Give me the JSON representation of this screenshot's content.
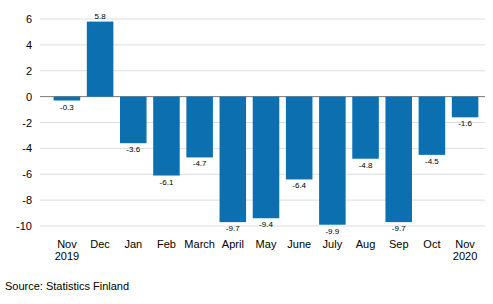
{
  "chart_data": {
    "type": "bar",
    "categories": [
      "Nov 2019",
      "Dec",
      "Jan",
      "Feb",
      "March",
      "April",
      "May",
      "June",
      "July",
      "Aug",
      "Sep",
      "Oct",
      "Nov 2020"
    ],
    "values": [
      -0.3,
      5.8,
      -3.6,
      -6.1,
      -4.7,
      -9.7,
      -9.4,
      -6.4,
      -9.9,
      -4.8,
      -9.7,
      -4.5,
      -1.6
    ],
    "color": "#0b6fb0",
    "ylim": [
      -10,
      6
    ],
    "yticks": [
      -10,
      -8,
      -6,
      -4,
      -2,
      0,
      2,
      4,
      6
    ],
    "grid": true,
    "data_labels": true,
    "source": "Source: Statistics Finland"
  }
}
